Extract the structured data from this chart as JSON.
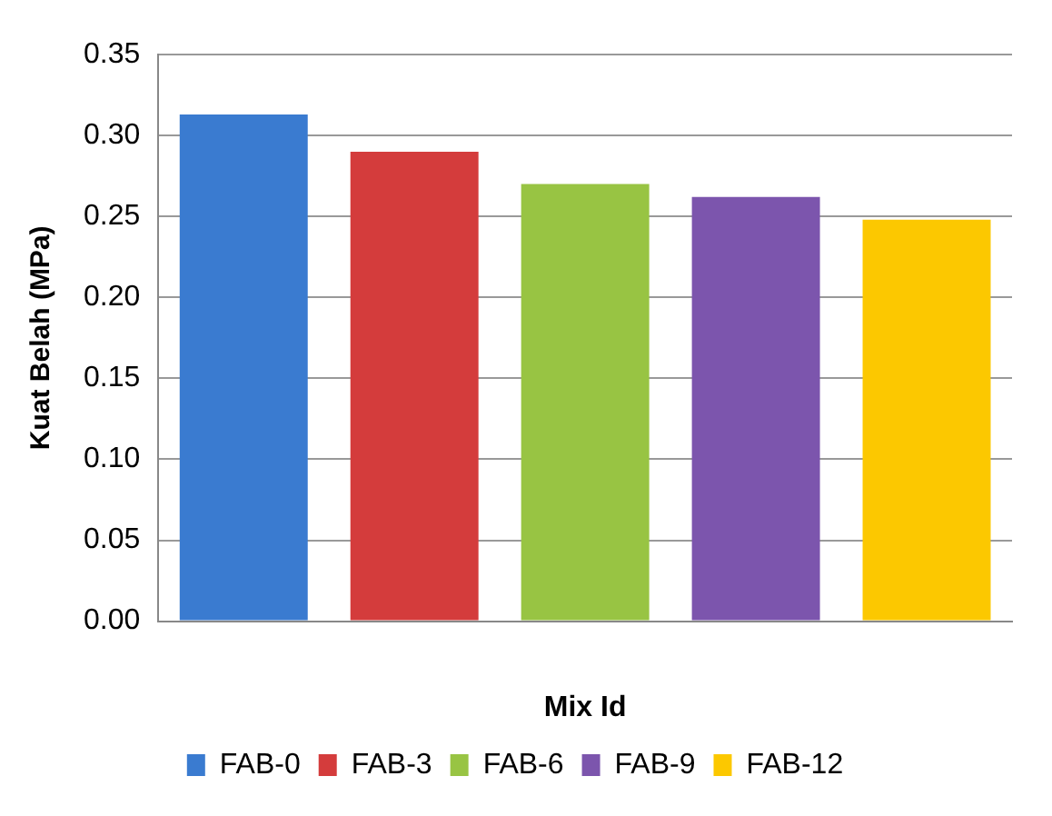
{
  "chart_data": {
    "type": "bar",
    "xlabel": "Mix Id",
    "ylabel": "Kuat Belah (MPa)",
    "categories": [
      null
    ],
    "series": [
      {
        "name": "FAB-0",
        "color": "#3a7bd0",
        "values": [
          0.313
        ]
      },
      {
        "name": "FAB-3",
        "color": "#d43c3c",
        "values": [
          0.29
        ]
      },
      {
        "name": "FAB-6",
        "color": "#98c443",
        "values": [
          0.27
        ]
      },
      {
        "name": "FAB-9",
        "color": "#7c55ad",
        "values": [
          0.262
        ]
      },
      {
        "name": "FAB-12",
        "color": "#fcc800",
        "values": [
          0.248
        ]
      }
    ],
    "ylim": [
      0,
      0.35
    ],
    "yticks": [
      {
        "value": 0,
        "label": "0.00"
      },
      {
        "value": 0.05,
        "label": "0.05"
      },
      {
        "value": 0.1,
        "label": "0.10"
      },
      {
        "value": 0.15,
        "label": "0.15"
      },
      {
        "value": 0.2,
        "label": "0.20"
      },
      {
        "value": 0.25,
        "label": "0.25"
      },
      {
        "value": 0.3,
        "label": "0.30"
      },
      {
        "value": 0.35,
        "label": "0.35"
      }
    ],
    "grid": "y",
    "legend": "bottom",
    "tick_labels": "y"
  }
}
